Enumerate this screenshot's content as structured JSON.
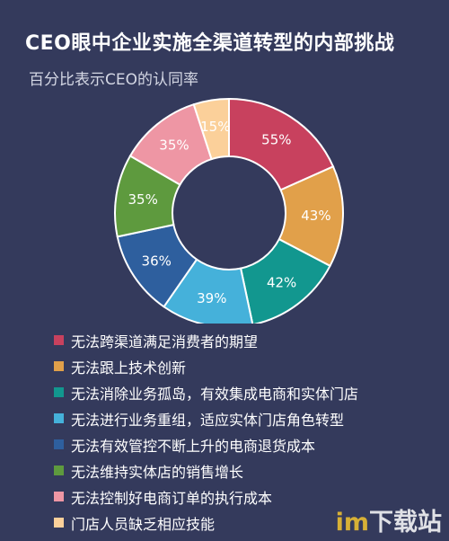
{
  "header": {
    "title": "CEO眼中企业实施全渠道转型的内部挑战",
    "subtitle": "百分比表示CEO的认同率"
  },
  "chart_data": {
    "type": "pie",
    "donut": true,
    "title": "CEO眼中企业实施全渠道转型的内部挑战",
    "subtitle": "百分比表示CEO的认同率",
    "unit": "%",
    "legend_position": "bottom",
    "series": [
      {
        "name": "无法跨渠道满足消费者的期望",
        "value": 55,
        "label": "55%",
        "color": "#c8415e"
      },
      {
        "name": "无法跟上技术创新",
        "value": 43,
        "label": "43%",
        "color": "#e1a04a"
      },
      {
        "name": "无法消除业务孤岛，有效集成电商和实体门店",
        "value": 42,
        "label": "42%",
        "color": "#12978f"
      },
      {
        "name": "无法进行业务重组，适应实体门店角色转型",
        "value": 39,
        "label": "39%",
        "color": "#45b1da"
      },
      {
        "name": "无法有效管控不断上升的电商退货成本",
        "value": 36,
        "label": "36%",
        "color": "#2e5f9e"
      },
      {
        "name": "无法维持实体店的销售增长",
        "value": 35,
        "label": "35%",
        "color": "#5e9a3e"
      },
      {
        "name": "无法控制好电商订单的执行成本",
        "value": 35,
        "label": "35%",
        "color": "#ee96a4"
      },
      {
        "name": "门店人员缺乏相应技能",
        "value": 15,
        "label": "15%",
        "color": "#fbd09a"
      }
    ]
  },
  "watermark": {
    "part1": "im",
    "part2": "下载站"
  }
}
